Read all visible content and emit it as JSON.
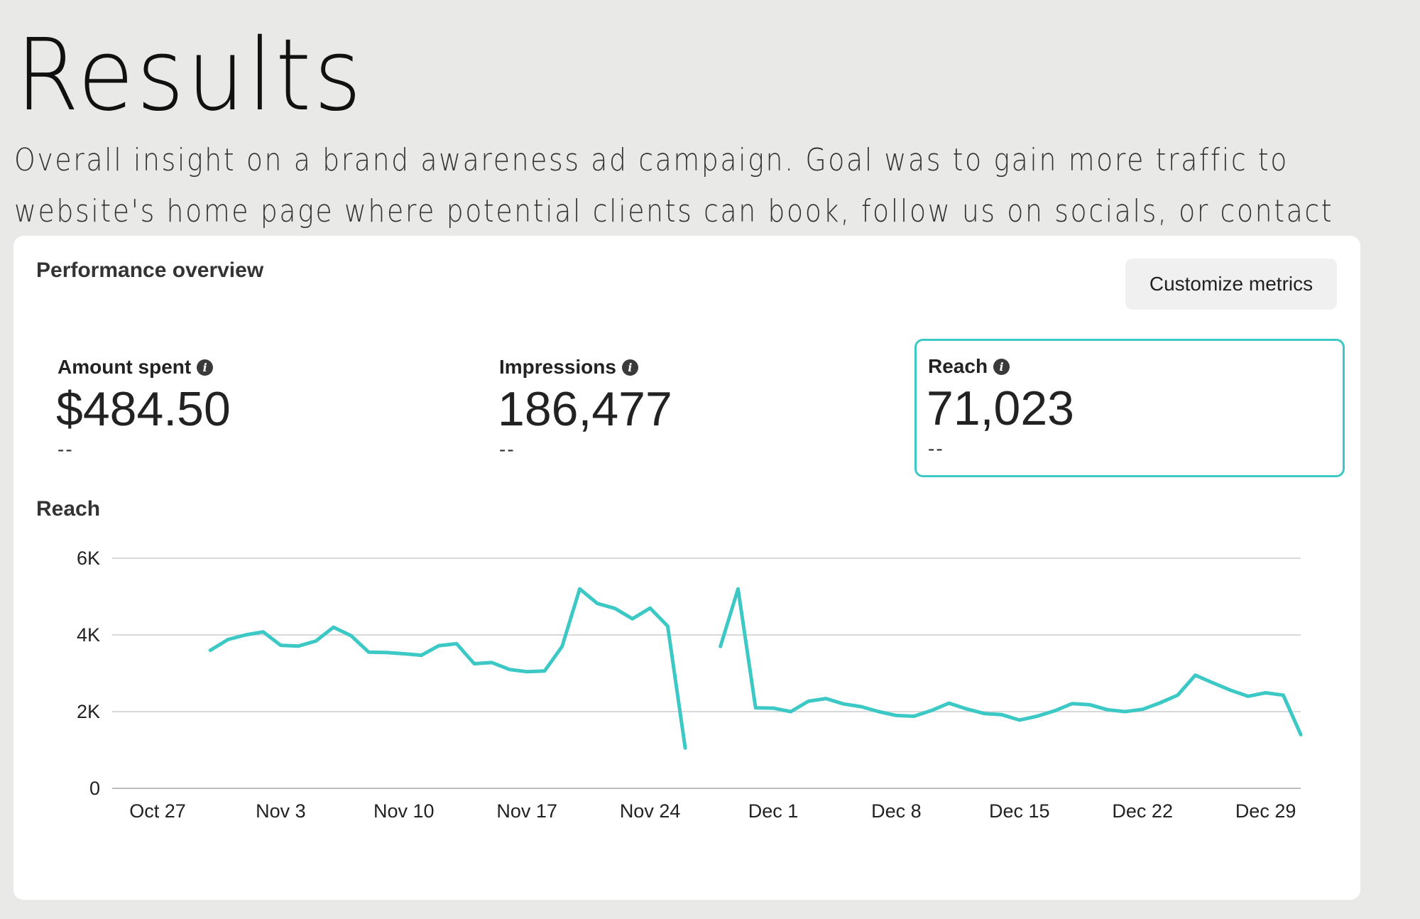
{
  "page": {
    "title": "Results",
    "subtitle_line1": "Overall insight on a brand awareness ad campaign. Goal was to gain more traffic to",
    "subtitle_line2": "website's home page where potential clients can book, follow us on socials, or contact"
  },
  "card": {
    "title": "Performance overview",
    "customize_label": "Customize metrics"
  },
  "metrics": [
    {
      "label": "Amount spent",
      "value": "$484.50",
      "delta": "--"
    },
    {
      "label": "Impressions",
      "value": "186,477",
      "delta": "--"
    },
    {
      "label": "Reach",
      "value": "71,023",
      "delta": "--",
      "selected": true
    }
  ],
  "icons": {
    "info": "info-icon"
  },
  "colors": {
    "accent": "#3cc9c6",
    "grid": "#d9d9d9"
  },
  "chart_data": {
    "type": "line",
    "title": "Reach",
    "x_ticks": [
      "Oct 27",
      "Nov 3",
      "Nov 10",
      "Nov 17",
      "Nov 24",
      "Dec 1",
      "Dec 8",
      "Dec 15",
      "Dec 22",
      "Dec 29"
    ],
    "y_ticks": [
      "0",
      "2K",
      "4K",
      "6K"
    ],
    "ylim": [
      0,
      6000
    ],
    "x_start_label": "Oct 27",
    "grid": true,
    "series": [
      {
        "name": "Reach",
        "segments": [
          {
            "start_day": 3,
            "values": [
              3600,
              3880,
              4000,
              4080,
              3730,
              3710,
              3840,
              4200,
              3980,
              3550,
              3540,
              3510,
              3470,
              3720,
              3770,
              3250,
              3280,
              3100,
              3040,
              3060,
              3700,
              5200,
              4820,
              4690,
              4420,
              4700,
              4230,
              1050
            ]
          },
          {
            "start_day": 32,
            "values": [
              3700,
              5200,
              2100,
              2090,
              2000,
              2270,
              2340,
              2200,
              2130,
              2000,
              1900,
              1880,
              2030,
              2220,
              2070,
              1950,
              1920,
              1780,
              1880,
              2020,
              2210,
              2180,
              2050,
              2000,
              2060,
              2230,
              2430,
              2950,
              2750,
              2560,
              2400,
              2490,
              2430,
              1400
            ]
          }
        ]
      }
    ]
  }
}
